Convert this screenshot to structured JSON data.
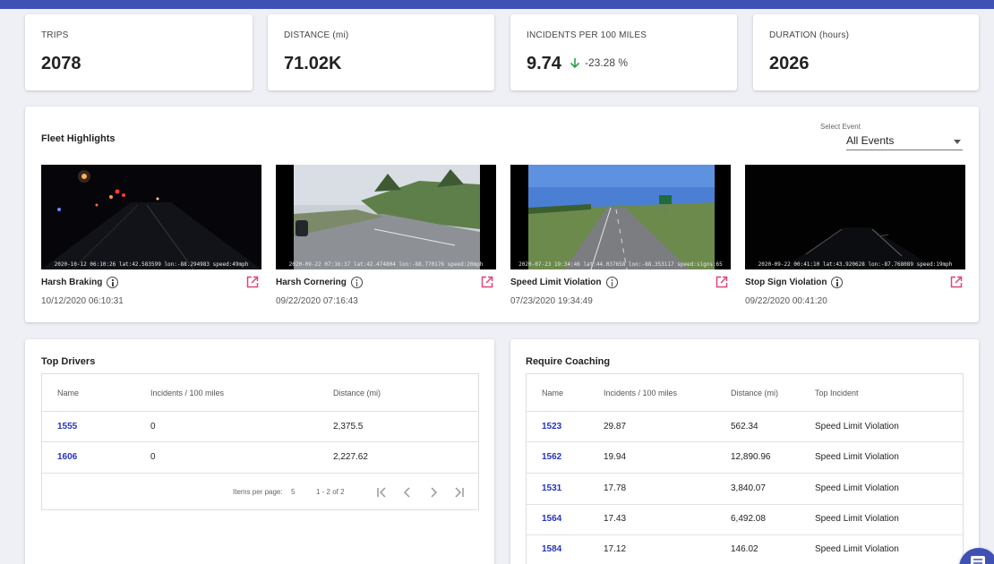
{
  "stats": [
    {
      "label": "TRIPS",
      "value": "2078"
    },
    {
      "label": "DISTANCE (mi)",
      "value": "71.02K"
    },
    {
      "label": "INCIDENTS PER 100 MILES",
      "value": "9.74",
      "change": "-23.28 %",
      "trend_icon": "arrow-down-icon",
      "trend_color": "#2e9e4f"
    },
    {
      "label": "DURATION (hours)",
      "value": "2026"
    }
  ],
  "highlights": {
    "title": "Fleet Highlights",
    "select_label": "Select Event",
    "select_value": "All Events",
    "events": [
      {
        "name": "Harsh Braking",
        "time": "10/12/2020 06:10:31",
        "caption": "2020-10-12 06:10:26 lat:42.583599 lon:-88.294983 speed:49mph",
        "scene": "night-road"
      },
      {
        "name": "Harsh Cornering",
        "time": "09/22/2020 07:16:43",
        "caption": "2020-09-22 07:16:37 lat:42.474804 lon:-88.770176 speed:20mph",
        "scene": "day-curve"
      },
      {
        "name": "Speed Limit Violation",
        "time": "07/23/2020 19:34:49",
        "caption": "2020-07-23 19:34:46 lat:44.037658 lon:-88.353117 speed:signs:65",
        "scene": "highway"
      },
      {
        "name": "Stop Sign Violation",
        "time": "09/22/2020 00:41:20",
        "caption": "2020-09-22 00:41:10 lat:43.920628 lon:-87.768089 speed:19mph",
        "scene": "dark-road"
      }
    ]
  },
  "top_drivers": {
    "title": "Top Drivers",
    "columns": [
      "Name",
      "Incidents / 100 miles",
      "Distance (mi)"
    ],
    "rows": [
      {
        "name": "1555",
        "incidents": "0",
        "distance": "2,375.5"
      },
      {
        "name": "1606",
        "incidents": "0",
        "distance": "2,227.62"
      }
    ],
    "items_per_page_label": "Items per page:",
    "items_per_page": "5",
    "range": "1 - 2 of 2"
  },
  "coaching": {
    "title": "Require Coaching",
    "columns": [
      "Name",
      "Incidents / 100 miles",
      "Distance (mi)",
      "Top Incident"
    ],
    "rows": [
      {
        "name": "1523",
        "incidents": "29.87",
        "distance": "562.34",
        "top": "Speed Limit Violation"
      },
      {
        "name": "1562",
        "incidents": "19.94",
        "distance": "12,890.96",
        "top": "Speed Limit Violation"
      },
      {
        "name": "1531",
        "incidents": "17.78",
        "distance": "3,840.07",
        "top": "Speed Limit Violation"
      },
      {
        "name": "1564",
        "incidents": "17.43",
        "distance": "6,492.08",
        "top": "Speed Limit Violation"
      },
      {
        "name": "1584",
        "incidents": "17.12",
        "distance": "146.02",
        "top": "Speed Limit Violation"
      }
    ]
  },
  "colors": {
    "accent": "#3f51b5",
    "link": "#2536b8",
    "open_icon": "#e0447a"
  }
}
